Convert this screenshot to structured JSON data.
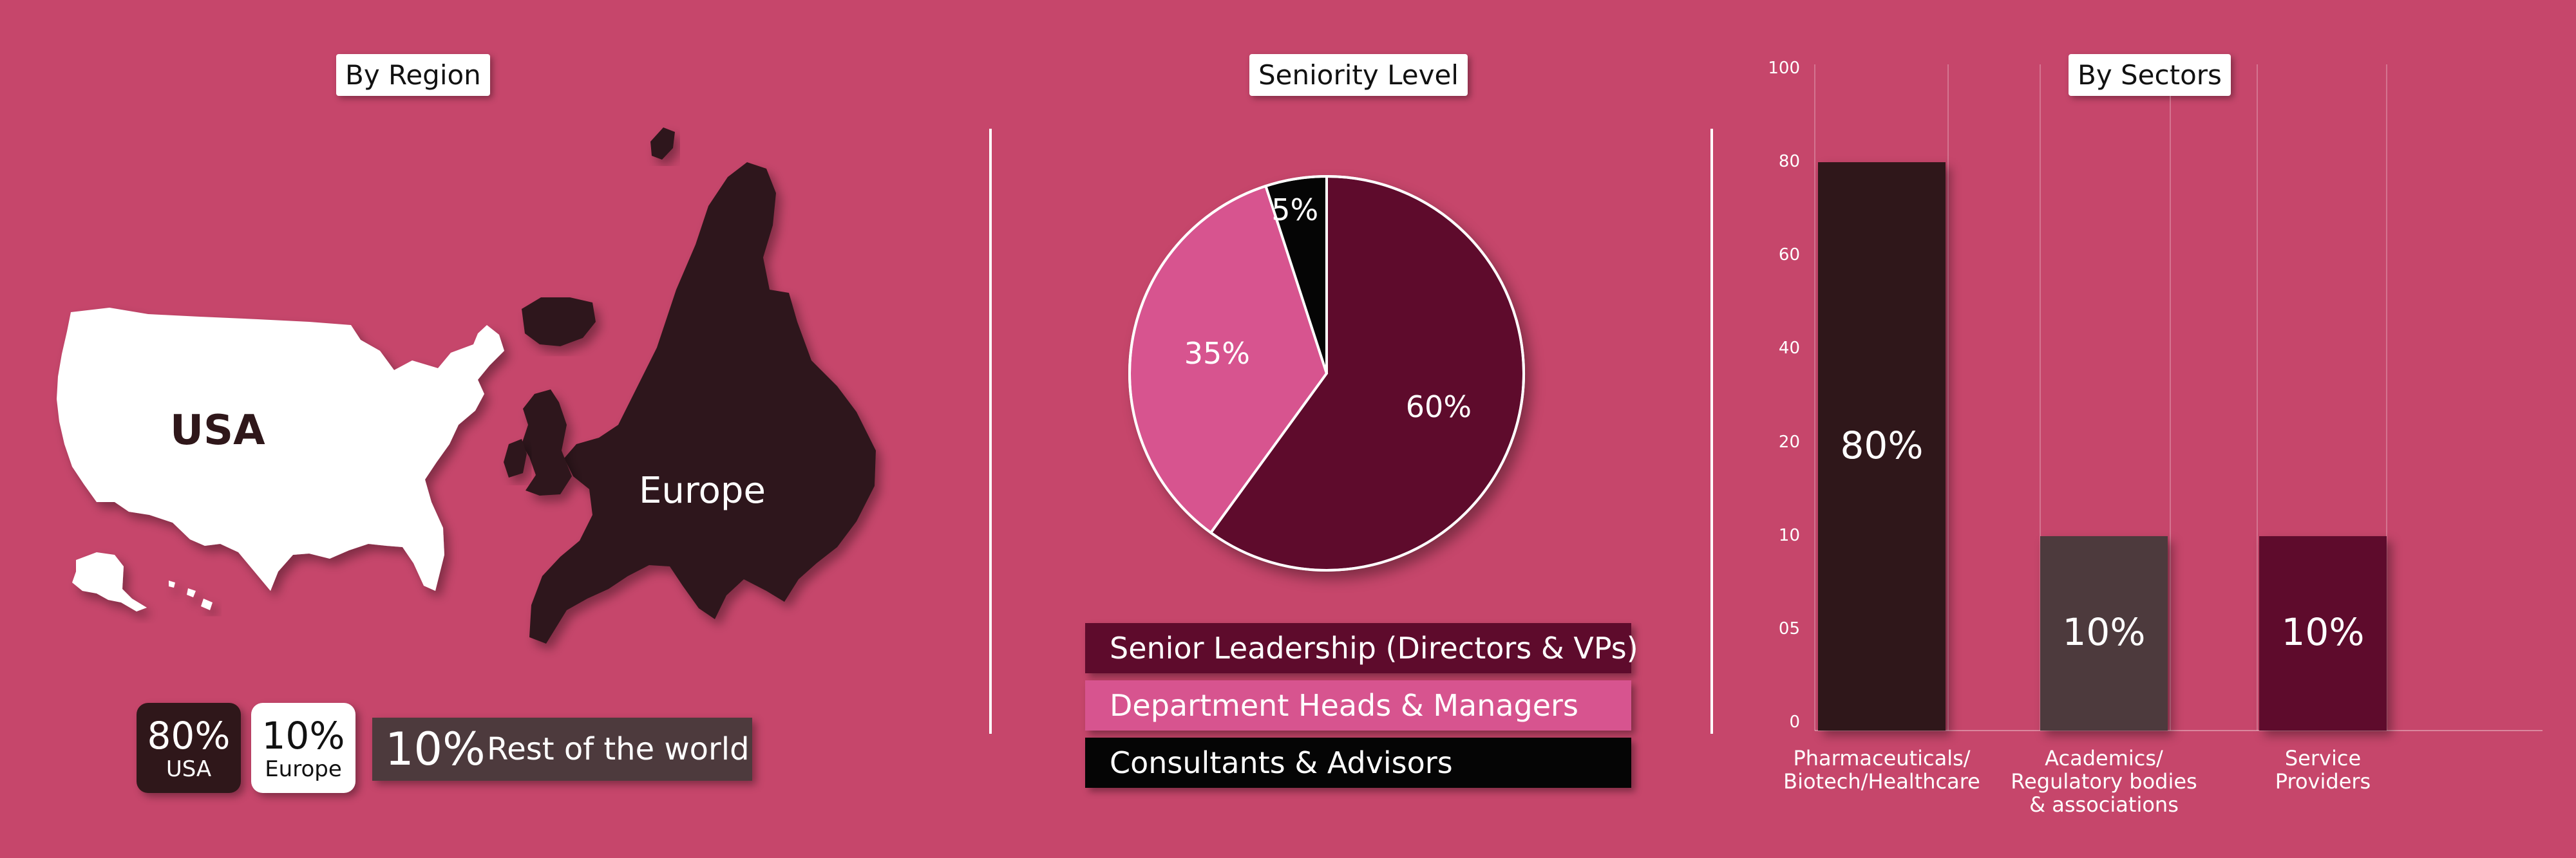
{
  "region": {
    "title": "By Region",
    "usa_label": "USA",
    "europe_label": "Europe",
    "stats": [
      {
        "pct": "80%",
        "name": "USA"
      },
      {
        "pct": "10%",
        "name": "Europe"
      }
    ],
    "rest": {
      "pct": "10%",
      "name": "Rest of the world"
    }
  },
  "seniority": {
    "title": "Seniority Level",
    "legend": [
      "Senior Leadership (Directors & VPs)",
      "Department Heads & Managers",
      "Consultants & Advisors"
    ]
  },
  "sectors": {
    "title": "By Sectors"
  },
  "colors": {
    "background": "#c6466b",
    "dark_brown": "#2f171a",
    "maroon": "#5e0b2c",
    "pink": "#d7548f",
    "black": "#050505",
    "gray_brown": "#4d3a3d",
    "white": "#ffffff"
  },
  "chart_data": [
    {
      "type": "pie",
      "title": "Seniority Level",
      "categories": [
        "Senior Leadership (Directors & VPs)",
        "Department Heads & Managers",
        "Consultants & Advisors"
      ],
      "values": [
        60,
        35,
        5
      ],
      "labels": [
        "60%",
        "35%",
        "5%"
      ],
      "colors": [
        "#5e0b2c",
        "#d7548f",
        "#050505"
      ]
    },
    {
      "type": "bar",
      "title": "By Sectors",
      "categories": [
        [
          "Pharmaceuticals/",
          "Biotech/Healthcare"
        ],
        [
          "Academics/",
          "Regulatory bodies",
          "& associations"
        ],
        [
          "Service",
          "Providers"
        ]
      ],
      "values": [
        80,
        10,
        10
      ],
      "labels": [
        "80%",
        "10%",
        "10%"
      ],
      "colors": [
        "#2f171a",
        "#4d3a3d",
        "#5e0b2c"
      ],
      "yticks": [
        "100",
        "80",
        "60",
        "40",
        "20",
        "10",
        "05",
        "0"
      ],
      "grid": true
    }
  ]
}
